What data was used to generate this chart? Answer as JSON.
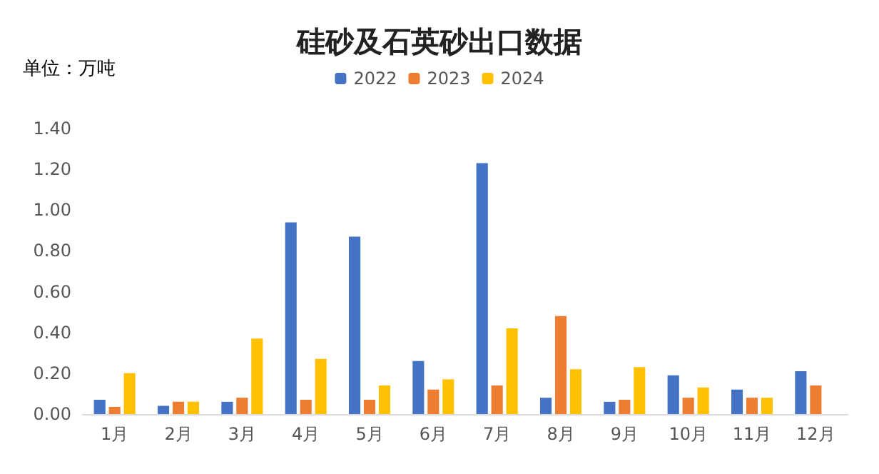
{
  "chart_data": {
    "type": "bar",
    "title": "硅砂及石英砂出口数据",
    "annotations": [
      "单位：万吨"
    ],
    "categories": [
      "1月",
      "2月",
      "3月",
      "4月",
      "5月",
      "6月",
      "7月",
      "8月",
      "9月",
      "10月",
      "11月",
      "12月"
    ],
    "series": [
      {
        "name": "2022",
        "color": "#4472c4",
        "values": [
          0.07,
          0.04,
          0.06,
          0.94,
          0.87,
          0.26,
          1.23,
          0.08,
          0.06,
          0.19,
          0.12,
          0.21
        ]
      },
      {
        "name": "2023",
        "color": "#ed7d31",
        "values": [
          0.035,
          0.06,
          0.08,
          0.07,
          0.07,
          0.12,
          0.14,
          0.48,
          0.07,
          0.08,
          0.08,
          0.14
        ]
      },
      {
        "name": "2024",
        "color": "#ffc000",
        "values": [
          0.2,
          0.06,
          0.37,
          0.27,
          0.14,
          0.17,
          0.42,
          0.22,
          0.23,
          0.13,
          0.08,
          null
        ]
      }
    ],
    "ylim": [
      0,
      1.4
    ],
    "yticks": [
      {
        "value": 0,
        "label": "0.00"
      },
      {
        "value": 0.2,
        "label": "0.20"
      },
      {
        "value": 0.4,
        "label": "0.40"
      },
      {
        "value": 0.6,
        "label": "0.60"
      },
      {
        "value": 0.8,
        "label": "0.80"
      },
      {
        "value": 1,
        "label": "1.00"
      },
      {
        "value": 1.2,
        "label": "1.20"
      },
      {
        "value": 1.4,
        "label": "1.40"
      }
    ],
    "legend": "top",
    "grid": false
  }
}
